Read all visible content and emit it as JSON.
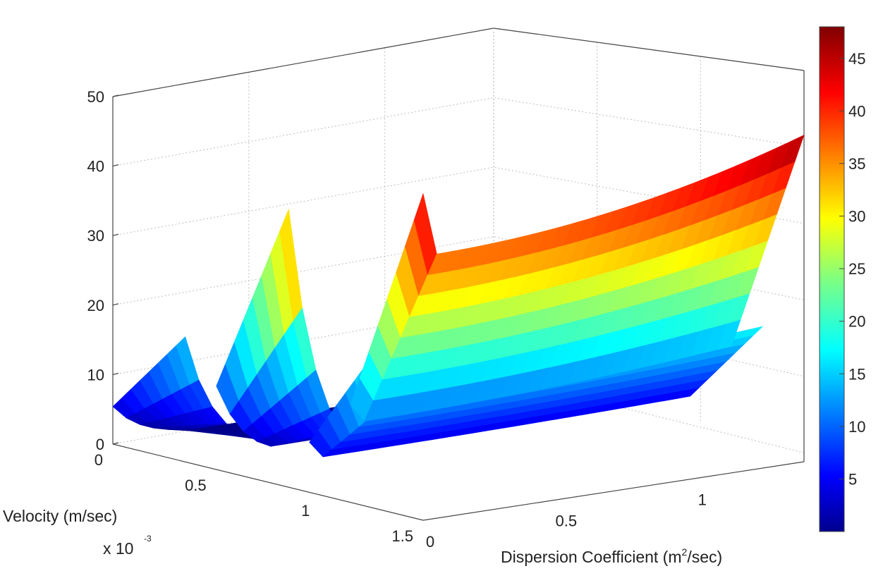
{
  "chart_data": {
    "type": "surface3d",
    "title": "",
    "xlabel": "Dispersion Coefficient (m",
    "xlabel_sup": "2",
    "xlabel_tail": "/sec)",
    "ylabel": "Velocity (m/sec)",
    "y_multiplier_label": "x 10",
    "y_multiplier_exponent": "-3",
    "zlabel": "",
    "x_ticks": [
      "0",
      "0.5",
      "1"
    ],
    "y_ticks": [
      "0",
      "0.5",
      "1",
      "1.5"
    ],
    "z_ticks": [
      "0",
      "10",
      "20",
      "30",
      "40",
      "50"
    ],
    "xlim": [
      0,
      1.4
    ],
    "ylim": [
      0,
      1.5
    ],
    "zlim": [
      0,
      50
    ],
    "grid": true,
    "colormap": "jet",
    "colorbar": {
      "range": [
        0,
        48
      ],
      "ticks": [
        "5",
        "10",
        "15",
        "20",
        "25",
        "30",
        "35",
        "40",
        "45"
      ],
      "placement": "right"
    },
    "surfaces": [
      {
        "peak_velocity": 0.35,
        "peak_value": 18,
        "far_edge_value": 1,
        "edge_value": 2
      },
      {
        "peak_velocity": 0.85,
        "peak_value": 40,
        "far_edge_value": 7,
        "edge_value": 10
      },
      {
        "peak_velocity": 1.3,
        "peak_value": 24,
        "far_edge_value": 16,
        "edge_value": 18
      },
      {
        "peak_velocity": 1.5,
        "peak_value": 47,
        "far_edge_value": 38,
        "edge_value": 47
      }
    ]
  }
}
